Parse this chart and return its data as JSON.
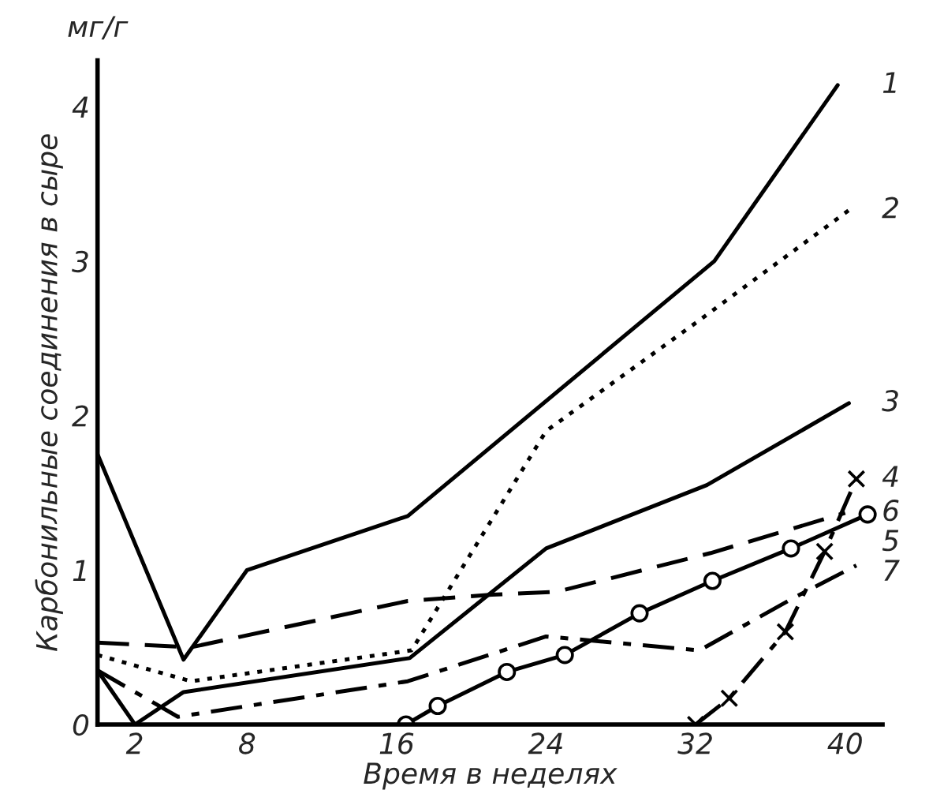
{
  "chart_data": {
    "type": "line",
    "xlabel": "Время в неделях",
    "ylabel": "Карбонильные соединения в сыре",
    "annotations": [
      "мг/г"
    ],
    "xlim": [
      0,
      42
    ],
    "ylim": [
      0,
      4.3
    ],
    "xticks": [
      2,
      8,
      16,
      24,
      32,
      40
    ],
    "yticks": [
      0,
      1,
      2,
      3,
      4
    ],
    "grid": false,
    "legend": false,
    "series": [
      {
        "name": "1",
        "color": "#000000",
        "line_style": "solid",
        "marker": "none",
        "x": [
          0,
          4.6,
          8,
          16.6,
          33,
          39.6
        ],
        "values": [
          1.75,
          0.42,
          1.0,
          1.35,
          3.0,
          4.14
        ]
      },
      {
        "name": "2",
        "color": "#000000",
        "line_style": "dotted",
        "marker": "none",
        "x": [
          0,
          5,
          16.8,
          24,
          32,
          40.2
        ],
        "values": [
          0.45,
          0.28,
          0.48,
          1.9,
          2.6,
          3.33
        ]
      },
      {
        "name": "3",
        "color": "#000000",
        "line_style": "solid",
        "marker": "none",
        "x": [
          0,
          2,
          4.6,
          16.7,
          24,
          32.6,
          40.2
        ],
        "values": [
          0.35,
          0,
          0.21,
          0.43,
          1.14,
          1.55,
          2.08
        ]
      },
      {
        "name": "4",
        "color": "#000000",
        "line_style": "dashdot",
        "marker": "cross",
        "x": [
          32,
          33.8,
          36.8,
          38.9,
          40.6
        ],
        "values": [
          0,
          0.17,
          0.6,
          1.12,
          1.59
        ]
      },
      {
        "name": "5",
        "color": "#000000",
        "line_style": "solid",
        "marker": "circle",
        "x": [
          16.5,
          18.2,
          21.9,
          25,
          29,
          32.9,
          37.1,
          41.2
        ],
        "values": [
          0,
          0.12,
          0.34,
          0.45,
          0.72,
          0.93,
          1.14,
          1.36
        ]
      },
      {
        "name": "6",
        "color": "#000000",
        "line_style": "dashed",
        "marker": "none",
        "x": [
          0,
          5,
          16.6,
          21.1,
          24.6,
          32.8,
          40
        ],
        "values": [
          0.53,
          0.5,
          0.8,
          0.84,
          0.86,
          1.11,
          1.37
        ]
      },
      {
        "name": "7",
        "color": "#000000",
        "line_style": "dashdot",
        "marker": "none",
        "x": [
          0,
          4.3,
          16.6,
          24,
          32.2,
          37.4,
          40.6
        ],
        "values": [
          0.35,
          0.05,
          0.28,
          0.57,
          0.48,
          0.83,
          1.03
        ]
      }
    ]
  }
}
